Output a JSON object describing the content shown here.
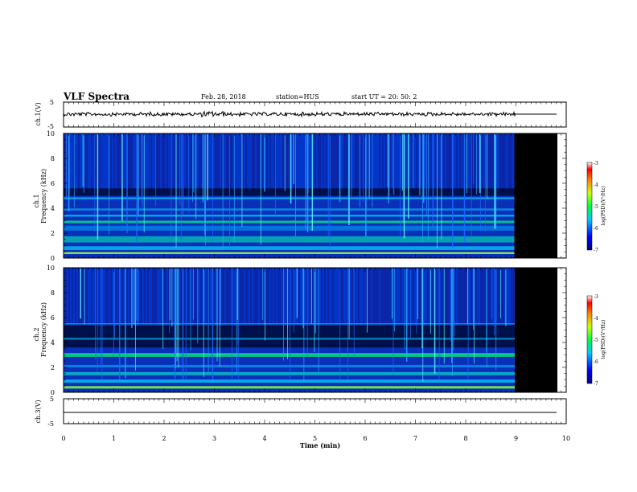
{
  "header": {
    "title": "VLF Spectra",
    "date": "Feb. 28, 2018",
    "station": "station=HUS",
    "start": "start  UT  =  20: 50: 2"
  },
  "chart_data": [
    {
      "type": "line",
      "panel": "ch1-waveform",
      "ylabel": "ch.1(V)",
      "ylim": [
        -5,
        5
      ],
      "yticks": [
        "5",
        "-5"
      ],
      "x_range_min": [
        0,
        10
      ],
      "data_end_min": 9.0,
      "description_level": 0
    },
    {
      "type": "heatmap",
      "panel": "ch1-spectrogram",
      "ylabel_top": "ch.1",
      "ylabel": "Frequency  (kHz)",
      "ylim": [
        0,
        10
      ],
      "yticks": [
        "0",
        "2",
        "4",
        "6",
        "8",
        "10"
      ],
      "data_end_min": 9.0,
      "colorbar": {
        "label": "log(PSD)(V²/Hz)",
        "range": [
          -7,
          -3
        ],
        "ticks": [
          "-3",
          "-4",
          "-5",
          "-6",
          "-7"
        ]
      }
    },
    {
      "type": "heatmap",
      "panel": "ch2-spectrogram",
      "ylabel_top": "ch.2",
      "ylabel": "Frequency  (kHz)",
      "ylim": [
        0,
        10
      ],
      "yticks": [
        "0",
        "2",
        "4",
        "6",
        "8",
        "10"
      ],
      "data_end_min": 9.0,
      "colorbar": {
        "label": "log(PSD)(V²/Hz)",
        "range": [
          -7,
          -3
        ],
        "ticks": [
          "-3",
          "-4",
          "-5",
          "-6",
          "-7"
        ]
      }
    },
    {
      "type": "line",
      "panel": "ch3-waveform",
      "ylabel": "ch.3(V)",
      "ylim": [
        -5,
        5
      ],
      "yticks": [
        "5",
        "-5"
      ],
      "data_end_min": 9.8,
      "description_level": 0
    }
  ],
  "xaxis": {
    "label": "Time  (min)",
    "range": [
      0,
      10
    ],
    "ticks": [
      "0",
      "1",
      "2",
      "3",
      "4",
      "5",
      "6",
      "7",
      "8",
      "9",
      "10"
    ]
  }
}
